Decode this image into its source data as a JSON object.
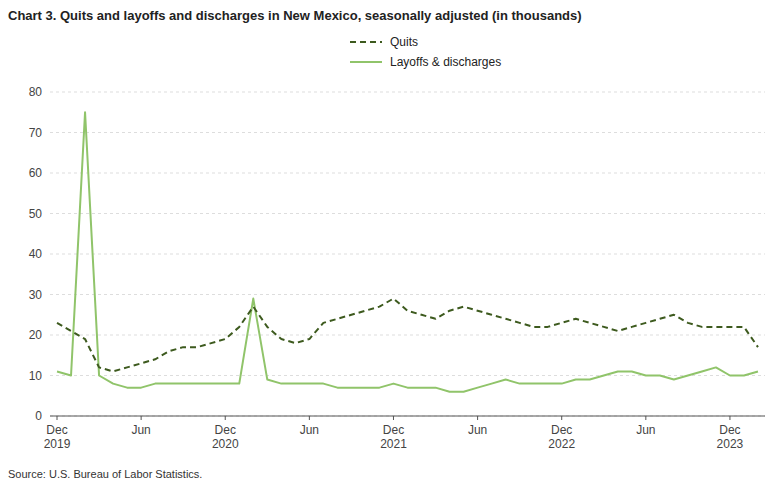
{
  "chart_data": {
    "type": "line",
    "title": "Chart 3. Quits and layoffs and discharges in New Mexico, seasonally adjusted (in thousands)",
    "annotations": [
      "Source: U.S. Bureau of Labor Statistics."
    ],
    "categories": [
      "Dec 2019",
      null,
      null,
      null,
      null,
      null,
      "Jun",
      null,
      null,
      null,
      null,
      null,
      "Dec 2020",
      null,
      null,
      null,
      null,
      null,
      "Jun",
      null,
      null,
      null,
      null,
      null,
      "Dec 2021",
      null,
      null,
      null,
      null,
      null,
      "Jun",
      null,
      null,
      null,
      null,
      null,
      "Dec 2022",
      null,
      null,
      null,
      null,
      null,
      "Jun",
      null,
      null,
      null,
      null,
      null,
      "Dec 2023",
      null,
      null
    ],
    "series": [
      {
        "name": "Quits",
        "color": "#3d5a1e",
        "line_style": "dashed",
        "values": [
          23,
          21,
          19,
          12,
          11,
          12,
          13,
          14,
          16,
          17,
          17,
          18,
          19,
          22,
          27,
          22,
          19,
          18,
          19,
          23,
          24,
          25,
          26,
          27,
          29,
          26,
          25,
          24,
          26,
          27,
          26,
          25,
          24,
          23,
          22,
          22,
          23,
          24,
          23,
          22,
          21,
          22,
          23,
          24,
          25,
          23,
          22,
          22,
          22,
          22,
          17
        ]
      },
      {
        "name": "Layoffs & discharges",
        "color": "#90c46a",
        "line_style": "solid",
        "values": [
          11,
          10,
          75,
          10,
          8,
          7,
          7,
          8,
          8,
          8,
          8,
          8,
          8,
          8,
          29,
          9,
          8,
          8,
          8,
          8,
          7,
          7,
          7,
          7,
          8,
          7,
          7,
          7,
          6,
          6,
          7,
          8,
          9,
          8,
          8,
          8,
          8,
          9,
          9,
          10,
          11,
          11,
          10,
          10,
          9,
          10,
          11,
          12,
          10,
          10,
          11
        ]
      }
    ],
    "ylim": [
      0,
      80
    ],
    "yticks": [
      0,
      10,
      20,
      30,
      40,
      50,
      60,
      70,
      80
    ],
    "grid": true,
    "legend": "top"
  }
}
